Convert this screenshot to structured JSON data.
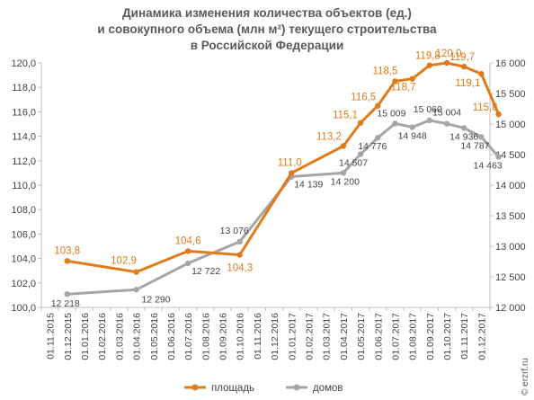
{
  "chart_data": {
    "type": "line",
    "title_lines": [
      "Динамика изменения количества объектов (ед.)",
      "и совокупного объема (млн м²) текущего строительства",
      "в Российской  Федерации"
    ],
    "x": [
      "01.11.2015",
      "01.12.2015",
      "01.01.2016",
      "01.02.2016",
      "01.03.2016",
      "01.04.2016",
      "01.05.2016",
      "01.06.2016",
      "01.07.2016",
      "01.08.2016",
      "01.09.2016",
      "01.10.2016",
      "01.11.2016",
      "01.12.2016",
      "01.01.2017",
      "01.02.2017",
      "01.03.2017",
      "01.04.2017",
      "01.05.2017",
      "01.06.2017",
      "01.07.2017",
      "01.08.2017",
      "01.09.2017",
      "01.10.2017",
      "01.11.2017",
      "01.12.2017"
    ],
    "left_axis": {
      "min": 100,
      "max": 120,
      "step": 2,
      "ticks": [
        "100,0",
        "102,0",
        "104,0",
        "106,0",
        "108,0",
        "110,0",
        "112,0",
        "114,0",
        "116,0",
        "118,0",
        "120,0"
      ]
    },
    "right_axis": {
      "min": 12000,
      "max": 16000,
      "step": 500,
      "ticks": [
        "12 000",
        "12 500",
        "13 000",
        "13 500",
        "14 000",
        "14 500",
        "15 000",
        "15 500",
        "16 000"
      ]
    },
    "series": [
      {
        "name": "площадь",
        "axis": "left",
        "color": "#e07b1a",
        "points": [
          {
            "x": 1.5,
            "y": 103.8,
            "label": "103,8"
          },
          {
            "x": 5.5,
            "y": 102.9,
            "label": "102,9"
          },
          {
            "x": 8.5,
            "y": 104.6,
            "label": "104,6"
          },
          {
            "x": 11.5,
            "y": 104.3,
            "label": "104,3"
          },
          {
            "x": 14.5,
            "y": 111.0,
            "label": "111,0"
          },
          {
            "x": 17.5,
            "y": 113.2,
            "label": "113,2"
          },
          {
            "x": 18.5,
            "y": 115.1,
            "label": "115,1"
          },
          {
            "x": 19.5,
            "y": 116.5,
            "label": "116,5"
          },
          {
            "x": 20.5,
            "y": 118.5,
            "label": "118,5"
          },
          {
            "x": 21.5,
            "y": 118.7,
            "label": "118,7"
          },
          {
            "x": 22.5,
            "y": 119.8,
            "label": "119,8"
          },
          {
            "x": 23.5,
            "y": 120.0,
            "label": "120,0"
          },
          {
            "x": 24.5,
            "y": 119.7,
            "label": "119,7"
          },
          {
            "x": 25.5,
            "y": 119.1,
            "label": "119,1"
          },
          {
            "x": 26.5,
            "y": 115.8,
            "label": "115,8"
          }
        ]
      },
      {
        "name": "домов",
        "axis": "right",
        "color": "#a6a6a6",
        "points": [
          {
            "x": 1.5,
            "y": 12218,
            "label": "12 218"
          },
          {
            "x": 5.5,
            "y": 12290,
            "label": "12 290"
          },
          {
            "x": 8.5,
            "y": 12722,
            "label": "12 722"
          },
          {
            "x": 11.5,
            "y": 13076,
            "label": "13 076"
          },
          {
            "x": 14.5,
            "y": 14139,
            "label": "14 139"
          },
          {
            "x": 17.5,
            "y": 14200,
            "label": "14 200"
          },
          {
            "x": 18.5,
            "y": 14507,
            "label": "14 507"
          },
          {
            "x": 19.5,
            "y": 14776,
            "label": "14 776"
          },
          {
            "x": 20.5,
            "y": 15009,
            "label": "15 009"
          },
          {
            "x": 21.5,
            "y": 14948,
            "label": "14 948"
          },
          {
            "x": 22.5,
            "y": 15060,
            "label": "15 060"
          },
          {
            "x": 23.5,
            "y": 15004,
            "label": "15 004"
          },
          {
            "x": 24.5,
            "y": 14936,
            "label": "14 936"
          },
          {
            "x": 25.5,
            "y": 14787,
            "label": "14 787"
          },
          {
            "x": 26.5,
            "y": 14463,
            "label": "14 463"
          }
        ]
      }
    ],
    "legend": {
      "position": "bottom",
      "items": [
        "площадь",
        "домов"
      ]
    },
    "grid": false
  },
  "watermark": "© erzrf.ru"
}
